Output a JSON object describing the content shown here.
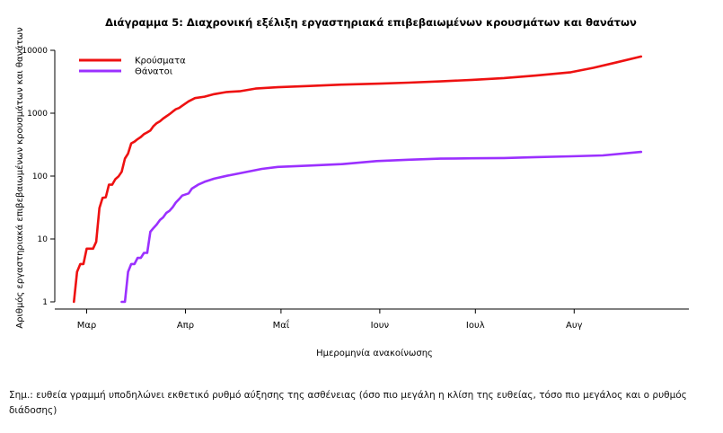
{
  "chart_data": {
    "type": "line",
    "title": "Διάγραμμα 5: Διαχρονική εξέλιξη εργαστηριακά επιβεβαιωμένων κρουσμάτων και θανάτων",
    "xlabel": "Ημερομηνία ανακοίνωσης",
    "ylabel": "Αριθμός εργαστηριακά επιβεβαιωμένων κρουσμάτων και θανάτων",
    "y_scale": "log10",
    "ylim": [
      1,
      10000
    ],
    "y_ticks": [
      1,
      10,
      100,
      1000,
      10000
    ],
    "y_tick_labels": [
      "1",
      "10",
      "100",
      "1000",
      "10000"
    ],
    "xlim": [
      "2020-02-20",
      "2020-09-06"
    ],
    "x_ticks": [
      "2020-03-01",
      "2020-04-01",
      "2020-05-01",
      "2020-06-01",
      "2020-07-01",
      "2020-08-01"
    ],
    "x_tick_labels": [
      "Μαρ",
      "Απρ",
      "Μαΐ",
      "Ιουν",
      "Ιουλ",
      "Αυγ"
    ],
    "grid": false,
    "legend_position": "top-left",
    "series": [
      {
        "name": "Κρούσματα",
        "color": "#ee1111",
        "points": [
          [
            "2020-02-26",
            1
          ],
          [
            "2020-02-27",
            3
          ],
          [
            "2020-02-28",
            4
          ],
          [
            "2020-02-29",
            4
          ],
          [
            "2020-03-01",
            7
          ],
          [
            "2020-03-02",
            7
          ],
          [
            "2020-03-03",
            7
          ],
          [
            "2020-03-04",
            9
          ],
          [
            "2020-03-05",
            31
          ],
          [
            "2020-03-06",
            45
          ],
          [
            "2020-03-07",
            46
          ],
          [
            "2020-03-08",
            73
          ],
          [
            "2020-03-09",
            73
          ],
          [
            "2020-03-10",
            89
          ],
          [
            "2020-03-11",
            99
          ],
          [
            "2020-03-12",
            117
          ],
          [
            "2020-03-13",
            190
          ],
          [
            "2020-03-14",
            228
          ],
          [
            "2020-03-15",
            331
          ],
          [
            "2020-03-16",
            352
          ],
          [
            "2020-03-17",
            387
          ],
          [
            "2020-03-18",
            418
          ],
          [
            "2020-03-19",
            464
          ],
          [
            "2020-03-20",
            495
          ],
          [
            "2020-03-21",
            530
          ],
          [
            "2020-03-22",
            624
          ],
          [
            "2020-03-23",
            695
          ],
          [
            "2020-03-24",
            743
          ],
          [
            "2020-03-25",
            821
          ],
          [
            "2020-03-26",
            892
          ],
          [
            "2020-03-27",
            966
          ],
          [
            "2020-03-28",
            1061
          ],
          [
            "2020-03-29",
            1156
          ],
          [
            "2020-03-30",
            1212
          ],
          [
            "2020-03-31",
            1314
          ],
          [
            "2020-04-02",
            1544
          ],
          [
            "2020-04-04",
            1735
          ],
          [
            "2020-04-07",
            1832
          ],
          [
            "2020-04-10",
            2011
          ],
          [
            "2020-04-14",
            2170
          ],
          [
            "2020-04-18",
            2235
          ],
          [
            "2020-04-23",
            2463
          ],
          [
            "2020-04-30",
            2591
          ],
          [
            "2020-05-10",
            2710
          ],
          [
            "2020-05-20",
            2850
          ],
          [
            "2020-06-01",
            2952
          ],
          [
            "2020-06-10",
            3058
          ],
          [
            "2020-06-20",
            3203
          ],
          [
            "2020-06-30",
            3390
          ],
          [
            "2020-07-10",
            3622
          ],
          [
            "2020-07-20",
            3964
          ],
          [
            "2020-07-31",
            4477
          ],
          [
            "2020-08-07",
            5270
          ],
          [
            "2020-08-14",
            6381
          ],
          [
            "2020-08-22",
            7975
          ]
        ]
      },
      {
        "name": "Θάνατοι",
        "color": "#9b30ff",
        "points": [
          [
            "2020-03-12",
            1
          ],
          [
            "2020-03-13",
            1
          ],
          [
            "2020-03-14",
            3
          ],
          [
            "2020-03-15",
            4
          ],
          [
            "2020-03-16",
            4
          ],
          [
            "2020-03-17",
            5
          ],
          [
            "2020-03-18",
            5
          ],
          [
            "2020-03-19",
            6
          ],
          [
            "2020-03-20",
            6
          ],
          [
            "2020-03-21",
            13
          ],
          [
            "2020-03-22",
            15
          ],
          [
            "2020-03-23",
            17
          ],
          [
            "2020-03-24",
            20
          ],
          [
            "2020-03-25",
            22
          ],
          [
            "2020-03-26",
            26
          ],
          [
            "2020-03-27",
            28
          ],
          [
            "2020-03-28",
            32
          ],
          [
            "2020-03-29",
            38
          ],
          [
            "2020-03-30",
            43
          ],
          [
            "2020-03-31",
            49
          ],
          [
            "2020-04-02",
            53
          ],
          [
            "2020-04-03",
            63
          ],
          [
            "2020-04-05",
            73
          ],
          [
            "2020-04-07",
            81
          ],
          [
            "2020-04-10",
            91
          ],
          [
            "2020-04-14",
            101
          ],
          [
            "2020-04-20",
            116
          ],
          [
            "2020-04-25",
            130
          ],
          [
            "2020-04-30",
            140
          ],
          [
            "2020-05-10",
            147
          ],
          [
            "2020-05-20",
            155
          ],
          [
            "2020-05-31",
            173
          ],
          [
            "2020-06-10",
            182
          ],
          [
            "2020-06-20",
            189
          ],
          [
            "2020-06-30",
            192
          ],
          [
            "2020-07-10",
            194
          ],
          [
            "2020-07-20",
            200
          ],
          [
            "2020-07-31",
            206
          ],
          [
            "2020-08-10",
            213
          ],
          [
            "2020-08-22",
            242
          ]
        ]
      }
    ]
  },
  "note": "Σημ.: ευθεία γραμμή υποδηλώνει εκθετικό ρυθμό αύξησης της ασθένειας (όσο πιο μεγάλη η κλίση της ευθείας, τόσο πιο μεγάλος και ο ρυθμός διάδοσης)"
}
